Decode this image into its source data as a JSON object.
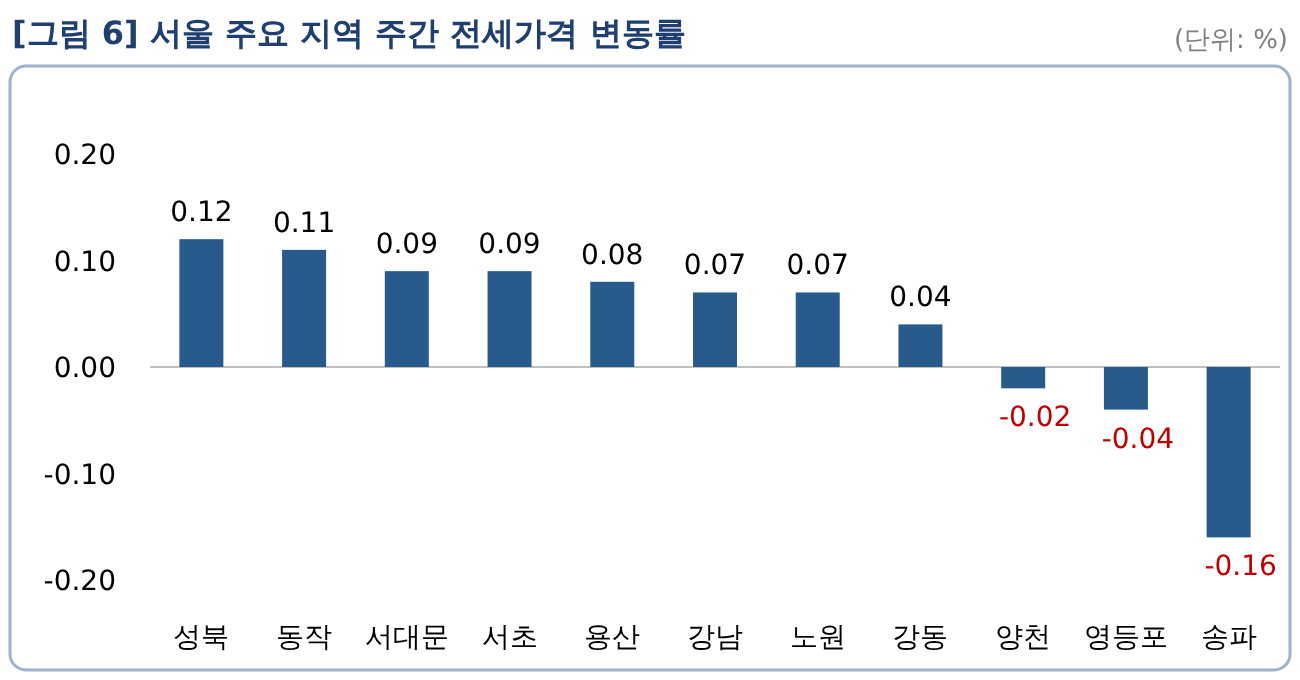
{
  "chart_data": {
    "type": "bar",
    "title": "[그림 6] 서울 주요 지역 주간 전세가격 변동률",
    "annotations": [
      "(단위: %)"
    ],
    "categories": [
      "성북",
      "동작",
      "서대문",
      "서초",
      "용산",
      "강남",
      "노원",
      "강동",
      "양천",
      "영등포",
      "송파"
    ],
    "values": [
      0.12,
      0.11,
      0.09,
      0.09,
      0.08,
      0.07,
      0.07,
      0.04,
      -0.02,
      -0.04,
      -0.16
    ],
    "color": "#285a8c",
    "ylim": [
      -0.2,
      0.2
    ],
    "yticks": [
      {
        "value": 0.2,
        "label": "0.20"
      },
      {
        "value": 0.1,
        "label": "0.10"
      },
      {
        "value": 0,
        "label": "0.00"
      },
      {
        "value": -0.1,
        "label": "-0.10"
      },
      {
        "value": -0.2,
        "label": "-0.20"
      }
    ],
    "data_labels": true
  }
}
